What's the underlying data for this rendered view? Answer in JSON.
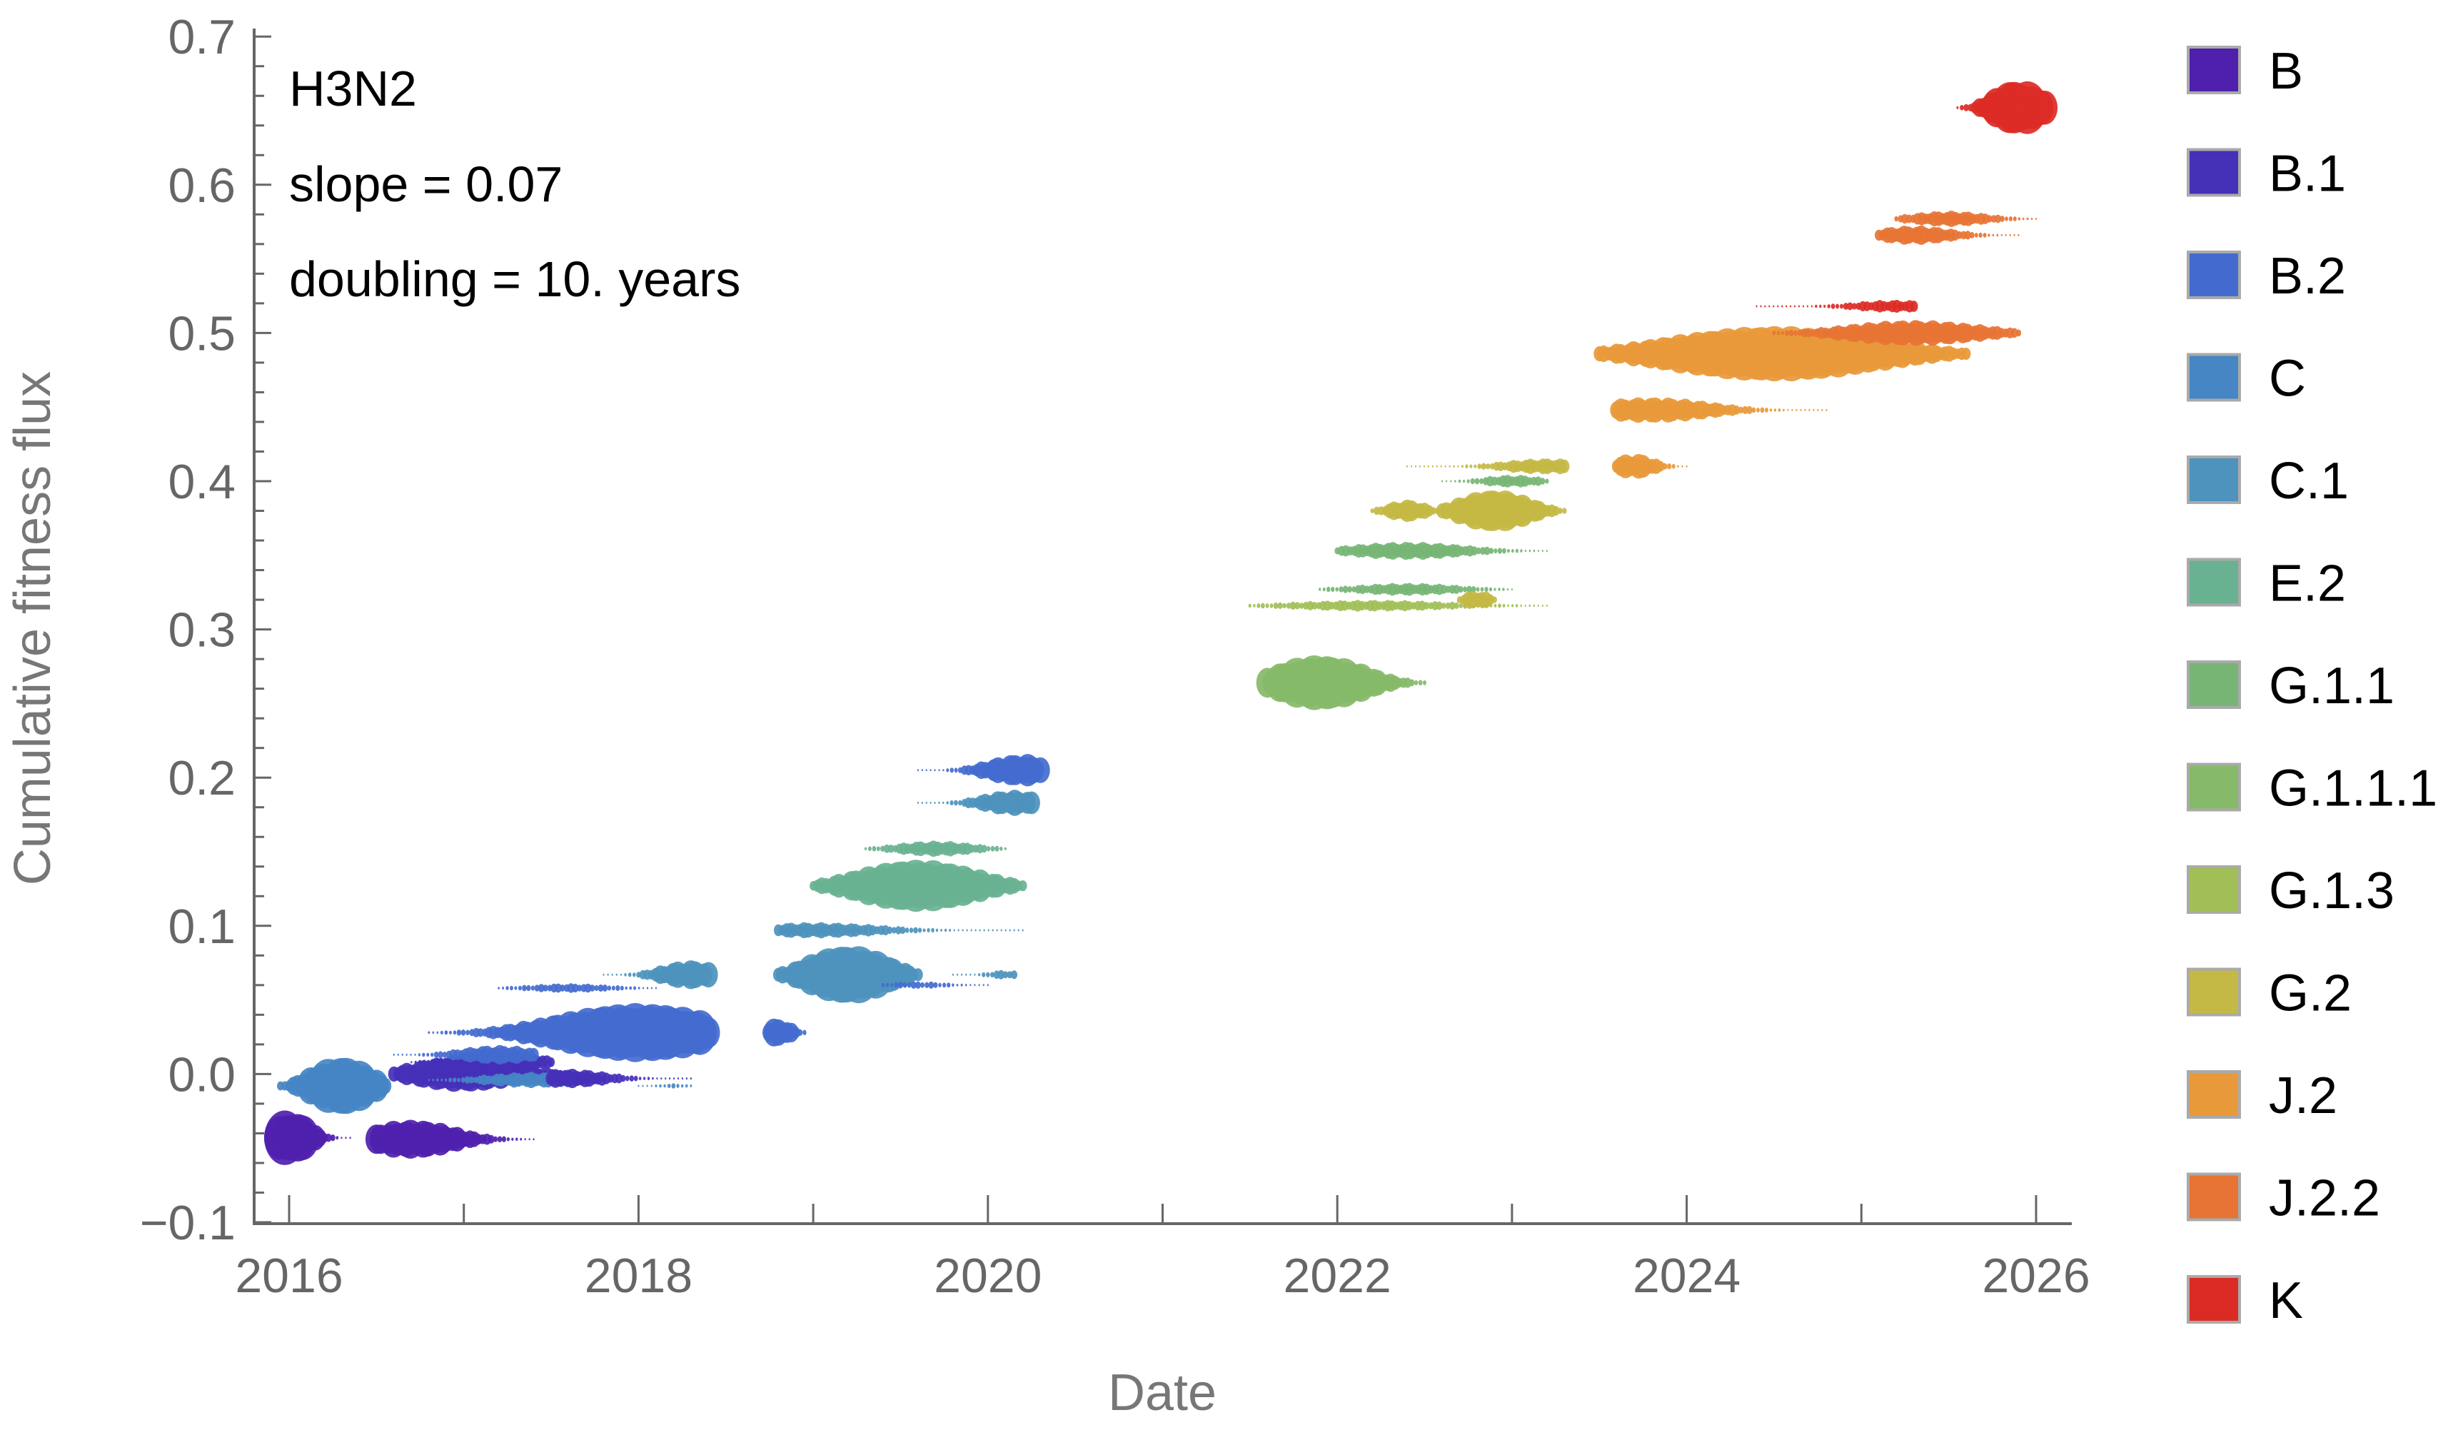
{
  "chart_data": {
    "type": "scatter",
    "title": "",
    "xlabel": "Date",
    "ylabel": "Cumulative fitness flux",
    "xlim": [
      2016,
      2026
    ],
    "ylim": [
      -0.1,
      0.7
    ],
    "x_ticks": [
      "2016",
      "2018",
      "2020",
      "2022",
      "2024",
      "2026"
    ],
    "x_tick_values": [
      2016,
      2018,
      2020,
      2022,
      2024,
      2026
    ],
    "y_ticks": [
      "−0.1",
      "0.0",
      "0.1",
      "0.2",
      "0.3",
      "0.4",
      "0.5",
      "0.6",
      "0.7"
    ],
    "y_tick_values": [
      -0.1,
      0,
      0.1,
      0.2,
      0.3,
      0.4,
      0.5,
      0.6,
      0.7
    ],
    "grid": false,
    "legend_position": "right",
    "annotations": [
      "H3N2",
      "slope = 0.07",
      "doubling = 10. years"
    ],
    "legend": [
      {
        "name": "B",
        "color": "#4f1fae"
      },
      {
        "name": "B.1",
        "color": "#4530b8"
      },
      {
        "name": "B.2",
        "color": "#436bcf"
      },
      {
        "name": "C",
        "color": "#4686c4"
      },
      {
        "name": "C.1",
        "color": "#4d93bd"
      },
      {
        "name": "E.2",
        "color": "#69b291"
      },
      {
        "name": "G.1.1",
        "color": "#76b574"
      },
      {
        "name": "G.1.1.1",
        "color": "#86ba68"
      },
      {
        "name": "G.1.3",
        "color": "#a1bf56"
      },
      {
        "name": "G.2",
        "color": "#c4b944"
      },
      {
        "name": "J.2",
        "color": "#e8993a"
      },
      {
        "name": "J.2.2",
        "color": "#e77434"
      },
      {
        "name": "K",
        "color": "#dc2b25"
      }
    ],
    "blobs_note": "each blob: clade, date range, peak date, cumulative fitness flux, relative size (0-1)",
    "blobs": [
      {
        "clade": "B",
        "t0": 2015.95,
        "t1": 2016.35,
        "peak": 2016.0,
        "flux": -0.043,
        "size": 0.85
      },
      {
        "clade": "B",
        "t0": 2016.5,
        "t1": 2017.4,
        "peak": 2016.7,
        "flux": -0.044,
        "size": 0.6
      },
      {
        "clade": "C",
        "t0": 2015.95,
        "t1": 2016.55,
        "peak": 2016.3,
        "flux": -0.008,
        "size": 0.9
      },
      {
        "clade": "B.1",
        "t0": 2016.6,
        "t1": 2017.7,
        "peak": 2017.0,
        "flux": 0.0,
        "size": 0.55
      },
      {
        "clade": "B.1",
        "t0": 2016.7,
        "t1": 2017.5,
        "peak": 2017.2,
        "flux": 0.008,
        "size": 0.4
      },
      {
        "clade": "C",
        "t0": 2016.8,
        "t1": 2017.8,
        "peak": 2017.4,
        "flux": -0.004,
        "size": 0.25
      },
      {
        "clade": "B.1",
        "t0": 2017.5,
        "t1": 2018.3,
        "peak": 2017.6,
        "flux": -0.003,
        "size": 0.3
      },
      {
        "clade": "C",
        "t0": 2018.0,
        "t1": 2018.3,
        "peak": 2018.2,
        "flux": -0.008,
        "size": 0.08
      },
      {
        "clade": "B.2",
        "t0": 2016.8,
        "t1": 2018.4,
        "peak": 2018.0,
        "flux": 0.028,
        "size": 0.9
      },
      {
        "clade": "B.2",
        "t0": 2016.6,
        "t1": 2017.4,
        "peak": 2017.2,
        "flux": 0.013,
        "size": 0.3
      },
      {
        "clade": "B.2",
        "t0": 2017.2,
        "t1": 2018.1,
        "peak": 2017.6,
        "flux": 0.058,
        "size": 0.15
      },
      {
        "clade": "C.1",
        "t0": 2017.8,
        "t1": 2018.4,
        "peak": 2018.3,
        "flux": 0.067,
        "size": 0.45
      },
      {
        "clade": "B.2",
        "t0": 2018.75,
        "t1": 2018.95,
        "peak": 2018.8,
        "flux": 0.028,
        "size": 0.45
      },
      {
        "clade": "C.1",
        "t0": 2018.8,
        "t1": 2019.6,
        "peak": 2019.2,
        "flux": 0.067,
        "size": 0.9
      },
      {
        "clade": "B.2",
        "t0": 2019.4,
        "t1": 2020.0,
        "peak": 2019.6,
        "flux": 0.06,
        "size": 0.12
      },
      {
        "clade": "C.1",
        "t0": 2019.8,
        "t1": 2020.15,
        "peak": 2020.1,
        "flux": 0.067,
        "size": 0.15
      },
      {
        "clade": "C.1",
        "t0": 2018.8,
        "t1": 2020.2,
        "peak": 2019.0,
        "flux": 0.097,
        "size": 0.25
      },
      {
        "clade": "E.2",
        "t0": 2019.0,
        "t1": 2020.2,
        "peak": 2019.6,
        "flux": 0.127,
        "size": 0.8
      },
      {
        "clade": "E.2",
        "t0": 2019.3,
        "t1": 2020.1,
        "peak": 2019.7,
        "flux": 0.152,
        "size": 0.25
      },
      {
        "clade": "C.1",
        "t0": 2019.6,
        "t1": 2020.25,
        "peak": 2020.15,
        "flux": 0.183,
        "size": 0.4
      },
      {
        "clade": "B.2",
        "t0": 2019.6,
        "t1": 2020.3,
        "peak": 2020.2,
        "flux": 0.205,
        "size": 0.5
      },
      {
        "clade": "G.1.1.1",
        "t0": 2021.6,
        "t1": 2022.5,
        "peak": 2021.9,
        "flux": 0.264,
        "size": 0.85
      },
      {
        "clade": "G.1.3",
        "t0": 2021.5,
        "t1": 2023.2,
        "peak": 2022.2,
        "flux": 0.316,
        "size": 0.18
      },
      {
        "clade": "G.1.1",
        "t0": 2021.9,
        "t1": 2023.0,
        "peak": 2022.4,
        "flux": 0.327,
        "size": 0.2
      },
      {
        "clade": "G.1.1",
        "t0": 2022.0,
        "t1": 2023.2,
        "peak": 2022.4,
        "flux": 0.353,
        "size": 0.28
      },
      {
        "clade": "G.2",
        "t0": 2022.2,
        "t1": 2022.6,
        "peak": 2022.4,
        "flux": 0.38,
        "size": 0.35
      },
      {
        "clade": "G.2",
        "t0": 2022.6,
        "t1": 2023.3,
        "peak": 2022.9,
        "flux": 0.38,
        "size": 0.65
      },
      {
        "clade": "G.1.1",
        "t0": 2022.6,
        "t1": 2023.2,
        "peak": 2023.0,
        "flux": 0.4,
        "size": 0.2
      },
      {
        "clade": "G.2",
        "t0": 2022.4,
        "t1": 2023.3,
        "peak": 2023.2,
        "flux": 0.41,
        "size": 0.25
      },
      {
        "clade": "G.2",
        "t0": 2022.7,
        "t1": 2022.9,
        "peak": 2022.8,
        "flux": 0.32,
        "size": 0.3
      },
      {
        "clade": "J.2",
        "t0": 2023.6,
        "t1": 2024.0,
        "peak": 2023.7,
        "flux": 0.41,
        "size": 0.4
      },
      {
        "clade": "J.2",
        "t0": 2023.6,
        "t1": 2024.8,
        "peak": 2023.8,
        "flux": 0.448,
        "size": 0.4
      },
      {
        "clade": "J.2",
        "t0": 2023.5,
        "t1": 2025.6,
        "peak": 2024.5,
        "flux": 0.486,
        "size": 0.85
      },
      {
        "clade": "J.2.2",
        "t0": 2024.5,
        "t1": 2025.9,
        "peak": 2025.3,
        "flux": 0.5,
        "size": 0.4
      },
      {
        "clade": "K",
        "t0": 2024.4,
        "t1": 2025.3,
        "peak": 2025.2,
        "flux": 0.518,
        "size": 0.2
      },
      {
        "clade": "J.2.2",
        "t0": 2025.1,
        "t1": 2025.9,
        "peak": 2025.3,
        "flux": 0.566,
        "size": 0.3
      },
      {
        "clade": "J.2.2",
        "t0": 2025.2,
        "t1": 2026.0,
        "peak": 2025.5,
        "flux": 0.577,
        "size": 0.25
      },
      {
        "clade": "K",
        "t0": 2025.55,
        "t1": 2026.05,
        "peak": 2025.9,
        "flux": 0.652,
        "size": 0.85
      }
    ]
  }
}
